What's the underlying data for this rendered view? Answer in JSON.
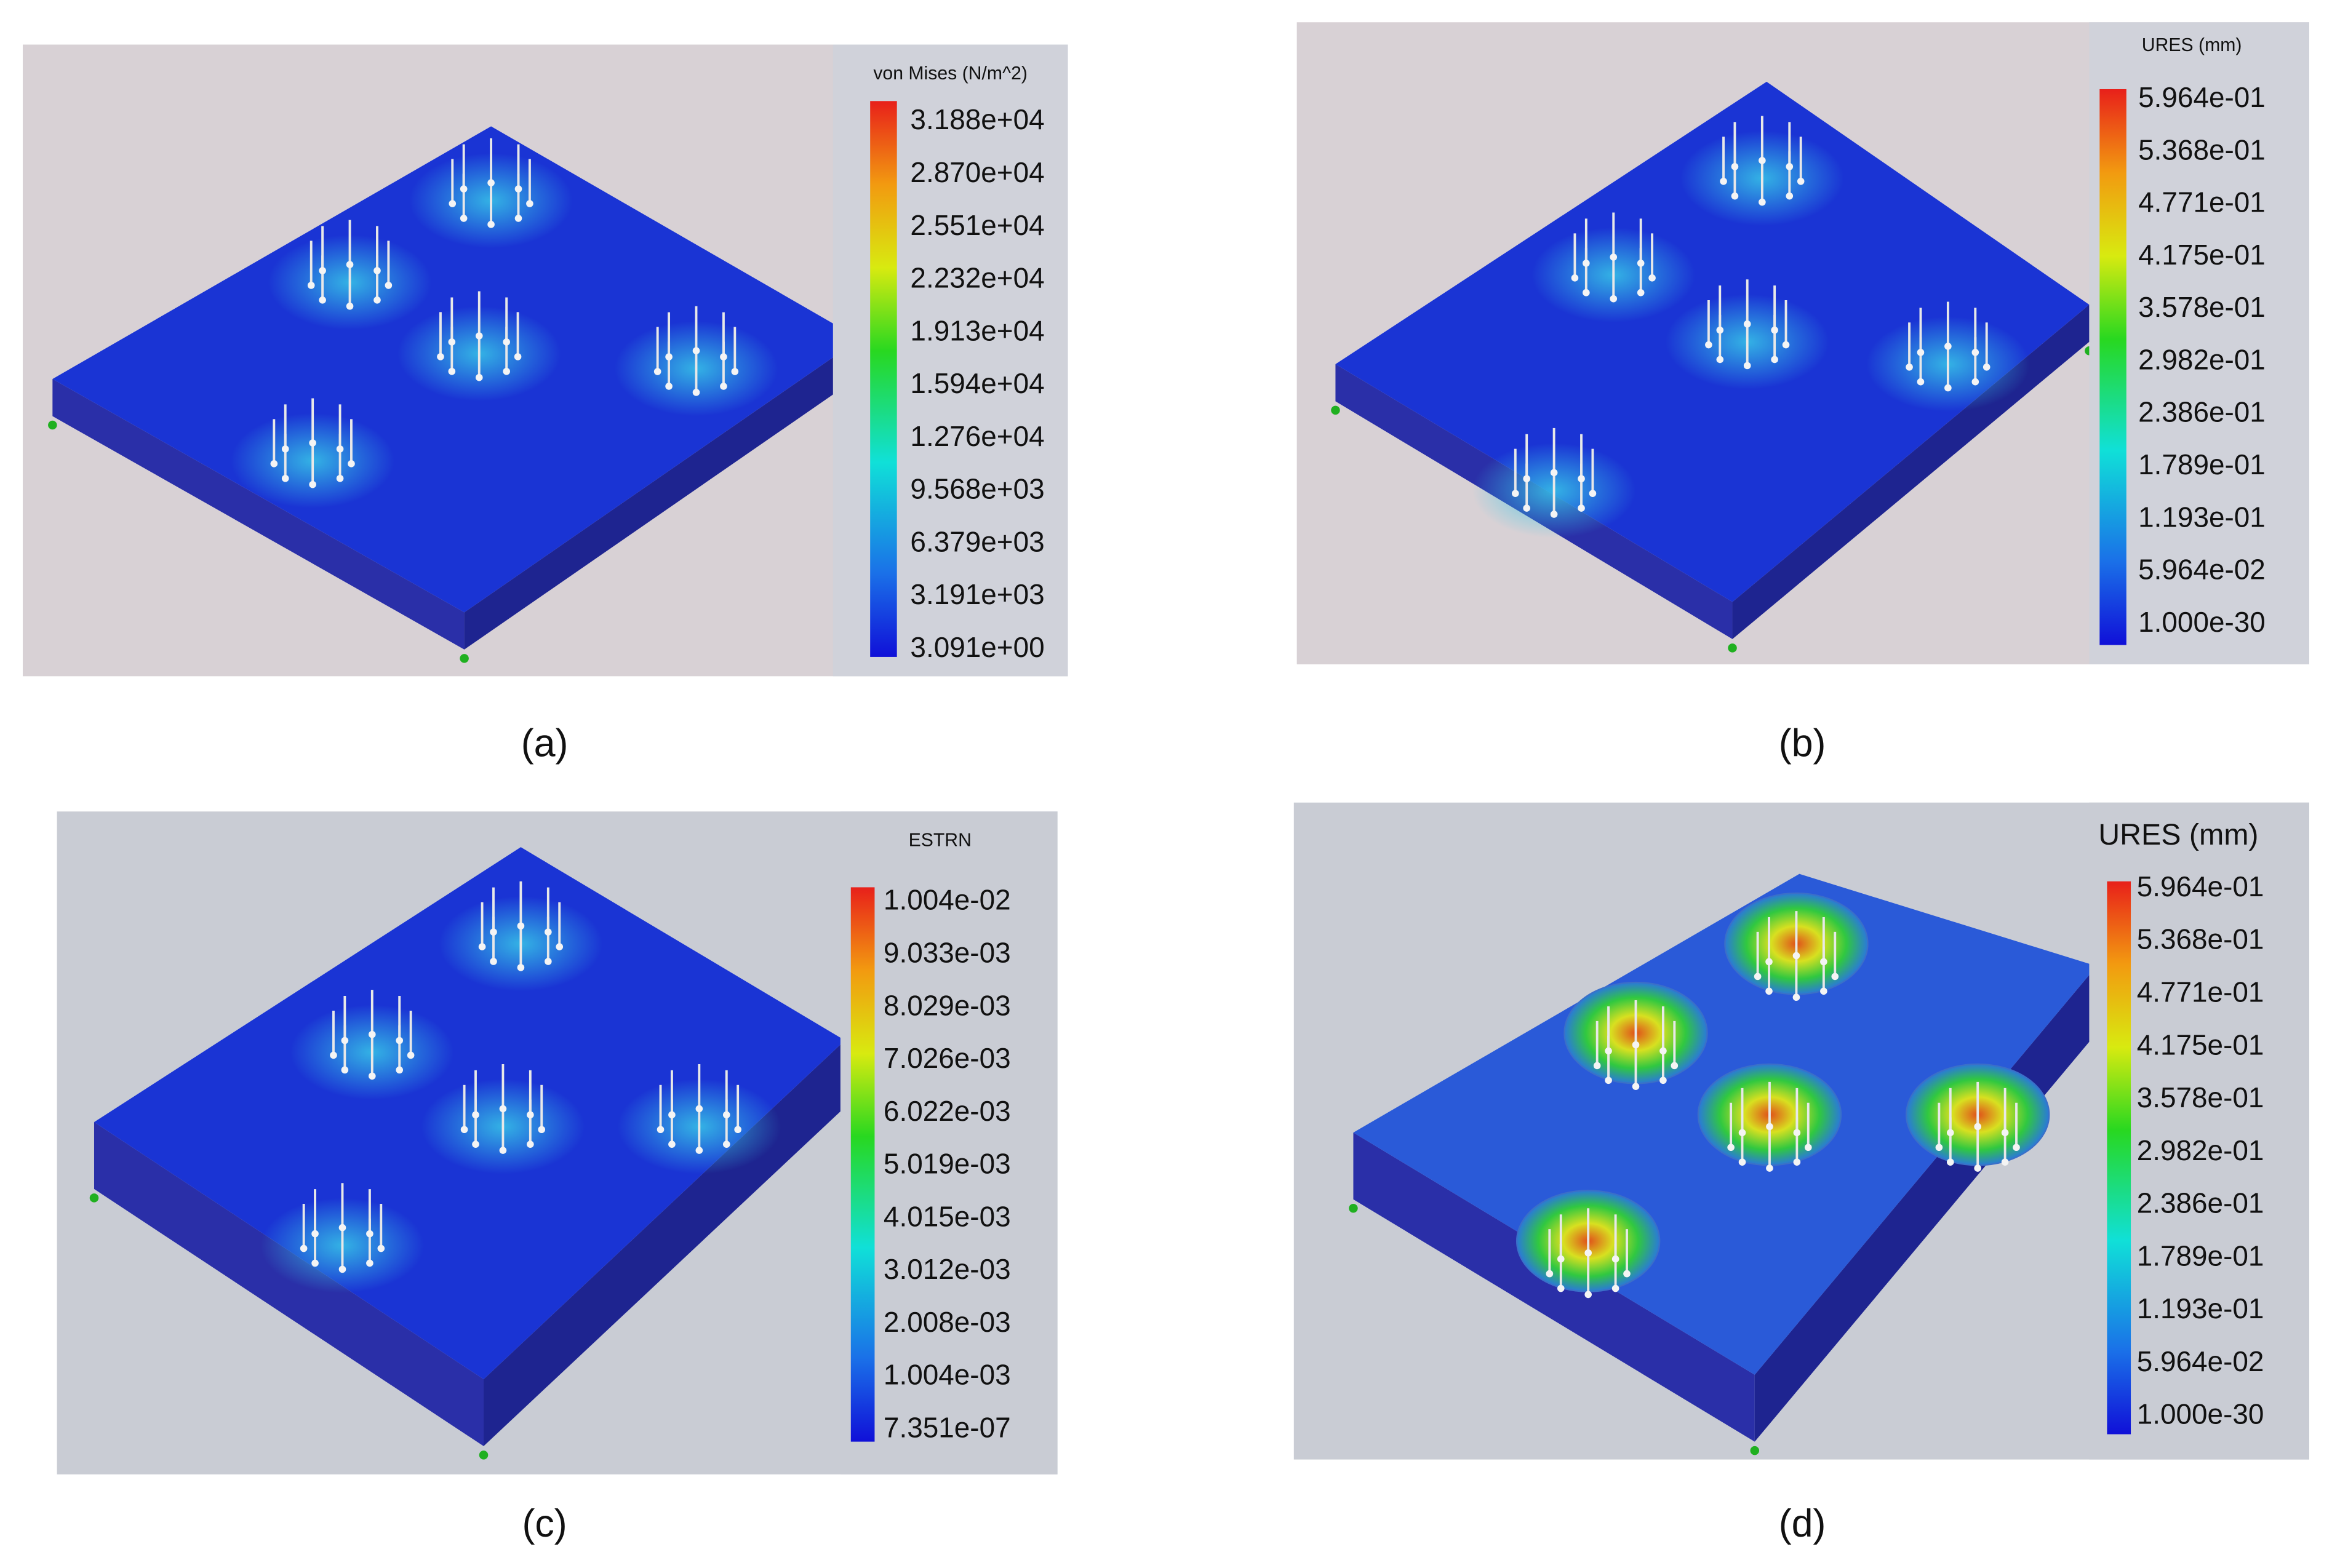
{
  "panels": [
    {
      "caption": "(a)",
      "legend_title": "von Mises (N/m^2)",
      "legend_labels": [
        "3.188e+04",
        "2.870e+04",
        "2.551e+04",
        "2.232e+04",
        "1.913e+04",
        "1.594e+04",
        "1.276e+04",
        "9.568e+03",
        "6.379e+03",
        "3.191e+03",
        "3.091e+00"
      ]
    },
    {
      "caption": "(b)",
      "legend_title": "URES (mm)",
      "legend_labels": [
        "5.964e-01",
        "5.368e-01",
        "4.771e-01",
        "4.175e-01",
        "3.578e-01",
        "2.982e-01",
        "2.386e-01",
        "1.789e-01",
        "1.193e-01",
        "5.964e-02",
        "1.000e-30"
      ]
    },
    {
      "caption": "(c)",
      "legend_title": "ESTRN",
      "legend_labels": [
        "1.004e-02",
        "9.033e-03",
        "8.029e-03",
        "7.026e-03",
        "6.022e-03",
        "5.019e-03",
        "4.015e-03",
        "3.012e-03",
        "2.008e-03",
        "1.004e-03",
        "7.351e-07"
      ]
    },
    {
      "caption": "(d)",
      "legend_title": "URES (mm)",
      "legend_labels": [
        "5.964e-01",
        "5.368e-01",
        "4.771e-01",
        "4.175e-01",
        "3.578e-01",
        "2.982e-01",
        "2.386e-01",
        "1.789e-01",
        "1.193e-01",
        "5.964e-02",
        "1.000e-30"
      ]
    }
  ]
}
